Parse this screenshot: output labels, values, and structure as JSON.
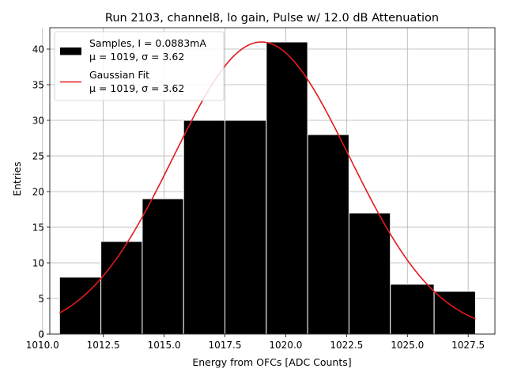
{
  "chart_data": {
    "type": "bar",
    "title": "Run 2103, channel8, lo gain, Pulse w/ 12.0 dB Attenuation",
    "xlabel": "Energy from OFCs [ADC Counts]",
    "ylabel": "Entries",
    "xlim": [
      1010.3,
      1028.6
    ],
    "ylim": [
      0,
      43
    ],
    "xticks": [
      1010.0,
      1012.5,
      1015.0,
      1017.5,
      1020.0,
      1022.5,
      1025.0,
      1027.5
    ],
    "xtick_labels": [
      "1010.0",
      "1012.5",
      "1015.0",
      "1017.5",
      "1020.0",
      "1022.5",
      "1025.0",
      "1027.5"
    ],
    "yticks": [
      0,
      5,
      10,
      15,
      20,
      25,
      30,
      35,
      40
    ],
    "ytick_labels": [
      "0",
      "5",
      "10",
      "15",
      "20",
      "25",
      "30",
      "35",
      "40"
    ],
    "grid": true,
    "legend_position": "top-left",
    "bin_edges": [
      1010.7,
      1012.4,
      1014.1,
      1015.8,
      1017.5,
      1019.2,
      1020.9,
      1022.6,
      1024.3,
      1026.1,
      1027.8
    ],
    "counts": [
      8,
      13,
      19,
      30,
      30,
      41,
      28,
      17,
      7,
      6
    ],
    "bar_color": "#000000",
    "bar_edge_color": "#ffffff",
    "fit": {
      "mu": 1019,
      "sigma": 3.62,
      "amplitude": 41,
      "x_range": [
        1010.7,
        1027.8
      ],
      "color": "#e31a1c"
    },
    "legend": [
      {
        "line1": "Samples, I = 0.0883mA",
        "line2": "μ = 1019, σ = 3.62",
        "swatch": "bar"
      },
      {
        "line1": "Gaussian Fit",
        "line2": "μ = 1019, σ = 3.62",
        "swatch": "line"
      }
    ]
  }
}
